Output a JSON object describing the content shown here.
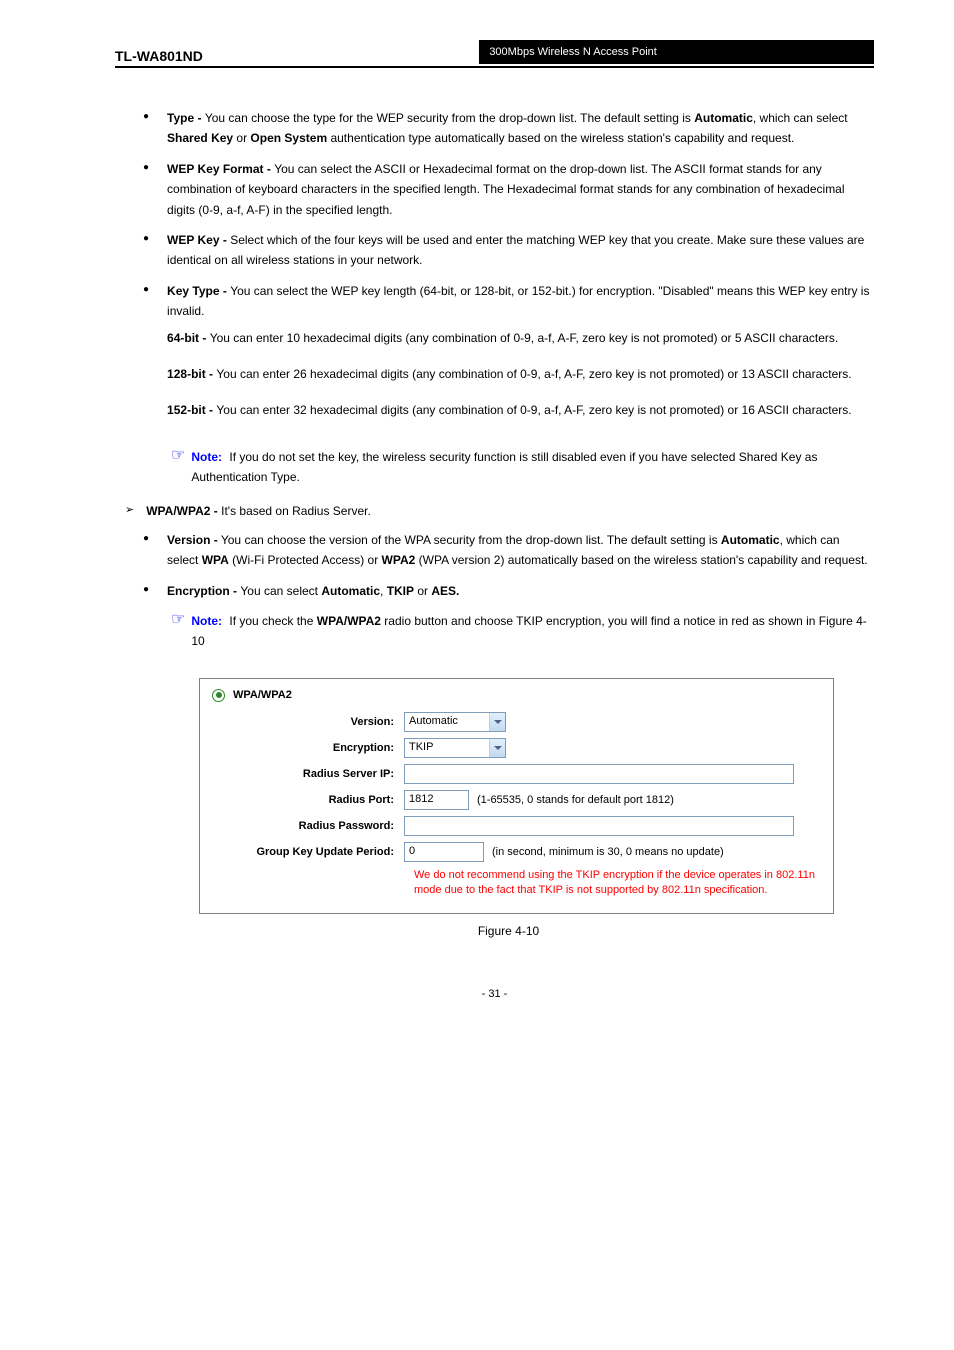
{
  "header": {
    "model": "TL-WA801ND",
    "title": "300Mbps Wireless N Access Point"
  },
  "items": [
    {
      "label": "Type - ",
      "text_plain": "You can choose the type for the WEP security from the drop-down list. The default setting is ",
      "bold1": "Automatic",
      "text_plain2": ", which can select ",
      "bold2": "Shared Key",
      "text_plain3": " or ",
      "bold3": "Open System",
      "text_plain4": " authentication type automatically based on the wireless station's capability and request."
    },
    {
      "label": "WEP Key Format - ",
      "text_plain": "You can select the ASCII or Hexadecimal format on the drop-down list. The ASCII format stands for any combination of keyboard characters in the specified length. The Hexadecimal format stands for any combination of hexadecimal digits (0-9, a-f, A-F) in the specified length."
    },
    {
      "label": "WEP Key - ",
      "text_plain": "Select which of the four keys will be used and enter the matching WEP key that you create. Make sure these values are identical on all wireless stations in your network."
    },
    {
      "label": "Key Type - ",
      "text_plain": "You can select the WEP key length (64-bit, or 128-bit, or 152-bit.) for encryption. \"Disabled\" means this WEP key entry is invalid.",
      "sub": [
        {
          "bold": "64-bit - ",
          "text": "You can enter 10 hexadecimal digits (any combination of 0-9, a-f, A-F, zero key is not promoted) or 5 ASCII characters."
        },
        {
          "bold": "128-bit - ",
          "text": "You can enter 26 hexadecimal digits (any combination of 0-9, a-f, A-F, zero key is not promoted) or 13 ASCII characters."
        },
        {
          "bold": "152-bit - ",
          "text": "You can enter 32 hexadecimal digits (any combination of 0-9, a-f, A-F, zero key is not promoted) or 16 ASCII characters."
        }
      ]
    }
  ],
  "note1": {
    "label": "Note:",
    "text": "If you do not set the key, the wireless security function is still disabled even if you have selected Shared Key as Authentication Type."
  },
  "wpa": {
    "label": "WPA/WPA2 - ",
    "text": "It's based on Radius Server.",
    "sub": [
      {
        "label": "Version -",
        "text": "You can choose the version of the WPA security from the drop-down list. The default setting is ",
        "bold1": "Automatic",
        "text2": ", which can select ",
        "bold2": "WPA",
        "paren1": " (Wi-Fi Protected Access) or ",
        "bold3": "WPA2",
        "paren2": " (WPA version 2) automatically based on the wireless station's capability and request."
      },
      {
        "label": "Encryption - ",
        "text": "You can select ",
        "bold1": "Automatic",
        "text2": ", ",
        "bold2": "TKIP",
        "text3": " or ",
        "bold3": "AES.",
        "text4": ""
      }
    ]
  },
  "note2": {
    "label": "Note:",
    "text": "If you check the ",
    "bold1": "WPA/WPA2",
    "text2": " radio button and choose TKIP encryption, you will find a notice in red as shown in Figure 4-10"
  },
  "figure": {
    "radio_label": "WPA/WPA2",
    "rows": {
      "version": {
        "label": "Version:",
        "value": "Automatic"
      },
      "encryption": {
        "label": "Encryption:",
        "value": "TKIP"
      },
      "radius_ip": {
        "label": "Radius Server IP:",
        "value": ""
      },
      "radius_port": {
        "label": "Radius Port:",
        "value": "1812",
        "hint": "(1-65535, 0 stands for default port 1812)"
      },
      "radius_password": {
        "label": "Radius Password:",
        "value": ""
      },
      "group_key": {
        "label": "Group Key Update Period:",
        "value": "0",
        "hint": "(in second, minimum is 30, 0 means no update)"
      }
    },
    "warning": "We do not recommend using the TKIP encryption if the device operates in 802.11n mode due to the fact that TKIP is not supported by 802.11n specification.",
    "caption": "Figure 4-10"
  },
  "page_number": "- 31 -",
  "colors": {
    "note_color": "#0000ff",
    "warning_color": "#ff0000"
  }
}
